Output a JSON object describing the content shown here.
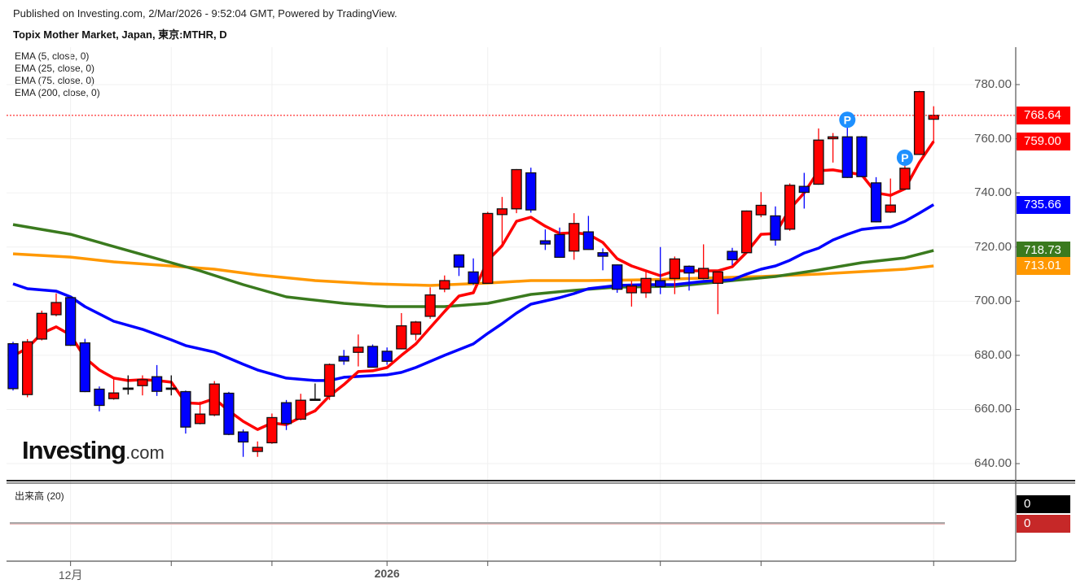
{
  "header": {
    "published": "Published on Investing.com, 2/Mar/2026 - 9:52:04 GMT, Powered by TradingView.",
    "title": "Topix Mother Market, Japan, 東京:MTHR, D"
  },
  "legend": [
    "EMA (5, close, 0)",
    "EMA (25, close, 0)",
    "EMA (75, close, 0)",
    "EMA (200, close, 0)"
  ],
  "logo": {
    "main": "Investing",
    "suffix": ".com"
  },
  "volume": {
    "label": "出来高 (20)",
    "badges": [
      "0",
      "0"
    ]
  },
  "colors": {
    "up": "#ff0000",
    "down": "#0000ff",
    "doji": "#000000",
    "ema5": "#ff0000",
    "ema25": "#0000ff",
    "ema75": "#3a7a1e",
    "ema200": "#ff9800",
    "marker": "#1e90ff"
  },
  "chart_data": {
    "type": "candlestick",
    "title": "Topix Mother Market, Japan, 東京:MTHR, D",
    "ylim": [
      632,
      794
    ],
    "yticks": [
      "780.00",
      "760.00",
      "740.00",
      "720.00",
      "700.00",
      "680.00",
      "660.00",
      "640.00"
    ],
    "ytick_values": [
      780,
      760,
      740,
      720,
      700,
      680,
      660,
      640
    ],
    "xticks": [
      {
        "label": "12月",
        "index": 4,
        "bold": false
      },
      {
        "label": "2026",
        "index": 26,
        "bold": true
      }
    ],
    "unlabeled_tick_indices": [
      11,
      18,
      33,
      45,
      52,
      64
    ],
    "ohlc": [
      [
        684.3,
        685,
        667,
        667.7
      ],
      [
        665.5,
        686,
        664.5,
        685.0
      ],
      [
        686.0,
        696.5,
        685.5,
        695.5
      ],
      [
        695.0,
        702.9,
        694.4,
        699.5
      ],
      [
        701.3,
        701.8,
        683.5,
        683.7
      ],
      [
        684.6,
        686.1,
        666.4,
        666.6
      ],
      [
        667.5,
        668.5,
        659.3,
        661.5
      ],
      [
        664.0,
        672.1,
        663.6,
        666.1
      ],
      [
        667.9,
        672.6,
        665.5,
        667.9
      ],
      [
        668.8,
        672.6,
        665.2,
        671.0
      ],
      [
        672.1,
        676.4,
        665.0,
        666.7
      ],
      [
        667.9,
        672.6,
        665.2,
        667.9
      ],
      [
        666.6,
        667,
        651.1,
        653.5
      ],
      [
        654.8,
        662.9,
        654.5,
        658.3
      ],
      [
        658.0,
        670.5,
        657.5,
        669.4
      ],
      [
        666.0,
        666.5,
        650.5,
        650.8
      ],
      [
        651.7,
        652.6,
        642.5,
        648.0
      ],
      [
        644.5,
        648.2,
        642.5,
        646.0
      ],
      [
        647.7,
        658.5,
        647.3,
        657.0
      ],
      [
        662.5,
        663.5,
        652.4,
        654.8
      ],
      [
        656.4,
        665.8,
        656.0,
        663.4
      ],
      [
        663.8,
        669.6,
        663.8,
        663.8
      ],
      [
        664.9,
        677.0,
        663.5,
        676.6
      ],
      [
        679.6,
        682.0,
        676.5,
        677.9
      ],
      [
        681.1,
        687.7,
        675.9,
        683.0
      ],
      [
        683.3,
        684.0,
        675.6,
        675.6
      ],
      [
        681.5,
        682.9,
        676.5,
        677.8
      ],
      [
        682.4,
        695.6,
        682.2,
        690.9
      ],
      [
        687.8,
        692.7,
        685.5,
        692.3
      ],
      [
        694.4,
        705.1,
        693.5,
        702.3
      ],
      [
        704.5,
        709.5,
        703.3,
        707.6
      ],
      [
        717.1,
        717.3,
        709.3,
        712.6
      ],
      [
        710.8,
        715.8,
        706.0,
        706.6
      ],
      [
        706.6,
        733.0,
        706.6,
        732.4
      ],
      [
        732.0,
        738.5,
        720.7,
        734.1
      ],
      [
        734.1,
        748.8,
        732.5,
        748.6
      ],
      [
        747.4,
        749.3,
        732.7,
        733.7
      ],
      [
        722.3,
        726.5,
        718.9,
        721.1
      ],
      [
        724.6,
        727.2,
        716.0,
        716.2
      ],
      [
        718.5,
        732.5,
        715.3,
        728.7
      ],
      [
        725.6,
        731.5,
        719.0,
        719.1
      ],
      [
        717.9,
        719.5,
        711.4,
        716.6
      ],
      [
        713.4,
        713.6,
        703.1,
        704.4
      ],
      [
        703.1,
        707.5,
        698.0,
        705.6
      ],
      [
        703.1,
        710.8,
        701.2,
        708.4
      ],
      [
        707.6,
        720.0,
        702.6,
        705.4
      ],
      [
        708.4,
        716.5,
        702.6,
        715.6
      ],
      [
        712.9,
        713.2,
        703.9,
        710.4
      ],
      [
        708.4,
        721.0,
        708.0,
        712.1
      ],
      [
        706.6,
        711.0,
        695.2,
        710.8
      ],
      [
        718.4,
        719.7,
        713.3,
        715.3
      ],
      [
        717.9,
        733.5,
        717.7,
        733.3
      ],
      [
        731.9,
        740.3,
        731.0,
        735.4
      ],
      [
        731.5,
        735.0,
        720.5,
        722.6
      ],
      [
        726.6,
        743.5,
        726.0,
        742.8
      ],
      [
        742.4,
        747.4,
        734.2,
        740.2
      ],
      [
        743.2,
        763.8,
        743.0,
        759.5
      ],
      [
        760.0,
        762.1,
        751.2,
        760.7
      ],
      [
        760.7,
        765.2,
        745.5,
        745.7
      ],
      [
        760.7,
        761.0,
        745.8,
        746.0
      ],
      [
        743.7,
        745.8,
        729.1,
        729.3
      ],
      [
        732.9,
        745.3,
        732.6,
        735.5
      ],
      [
        741.4,
        751.5,
        741.0,
        749.1
      ],
      [
        754.2,
        777.7,
        754.0,
        777.4
      ],
      [
        767.2,
        772.0,
        758.6,
        768.64
      ]
    ],
    "series": [
      {
        "name": "EMA (5, close, 0)",
        "color_key": "ema5",
        "points": [
          [
            0,
            679.7
          ],
          [
            1,
            682.7
          ],
          [
            2,
            688.1
          ],
          [
            3,
            690.5
          ],
          [
            4,
            687.5
          ],
          [
            5,
            679.1
          ],
          [
            6,
            674.6
          ],
          [
            7,
            671.6
          ],
          [
            8,
            670.7
          ],
          [
            9,
            671.0
          ],
          [
            10,
            670.7
          ],
          [
            11,
            670.1
          ],
          [
            12,
            662.5
          ],
          [
            13,
            662.2
          ],
          [
            14,
            664.0
          ],
          [
            15,
            659.5
          ],
          [
            16,
            655.6
          ],
          [
            17,
            652.6
          ],
          [
            18,
            655.0
          ],
          [
            19,
            654.4
          ],
          [
            20,
            657.1
          ],
          [
            21,
            659.5
          ],
          [
            22,
            665.0
          ],
          [
            23,
            669.2
          ],
          [
            24,
            674.0
          ],
          [
            25,
            674.3
          ],
          [
            26,
            675.5
          ],
          [
            27,
            680.0
          ],
          [
            28,
            684.2
          ],
          [
            29,
            690.2
          ],
          [
            30,
            696.2
          ],
          [
            31,
            701.9
          ],
          [
            32,
            703.1
          ],
          [
            33,
            715.1
          ],
          [
            34,
            720.5
          ],
          [
            35,
            729.5
          ],
          [
            36,
            731.0
          ],
          [
            37,
            727.7
          ],
          [
            38,
            725.0
          ],
          [
            39,
            725.3
          ],
          [
            40,
            724.7
          ],
          [
            41,
            721.7
          ],
          [
            42,
            715.7
          ],
          [
            43,
            713.0
          ],
          [
            44,
            711.2
          ],
          [
            45,
            709.4
          ],
          [
            46,
            711.2
          ],
          [
            47,
            711.2
          ],
          [
            48,
            711.2
          ],
          [
            49,
            711.2
          ],
          [
            50,
            712.7
          ],
          [
            51,
            718.1
          ],
          [
            52,
            724.7
          ],
          [
            53,
            725.0
          ],
          [
            54,
            734.0
          ],
          [
            55,
            740.0
          ],
          [
            56,
            748.2
          ],
          [
            57,
            748.5
          ],
          [
            58,
            747.6
          ],
          [
            59,
            746.7
          ],
          [
            60,
            740.0
          ],
          [
            61,
            739.1
          ],
          [
            62,
            741.5
          ],
          [
            63,
            751.2
          ],
          [
            64,
            759.0
          ]
        ],
        "last_label": "759.00"
      },
      {
        "name": "EMA (25, close, 0)",
        "color_key": "ema25",
        "points": [
          [
            0,
            706.4
          ],
          [
            1,
            704.6
          ],
          [
            3,
            703.7
          ],
          [
            4,
            701.6
          ],
          [
            5,
            698.0
          ],
          [
            7,
            692.6
          ],
          [
            9,
            689.6
          ],
          [
            11,
            685.7
          ],
          [
            12,
            683.6
          ],
          [
            14,
            681.2
          ],
          [
            16,
            676.7
          ],
          [
            17,
            674.6
          ],
          [
            19,
            671.6
          ],
          [
            21,
            670.7
          ],
          [
            22,
            670.7
          ],
          [
            23,
            671.9
          ],
          [
            25,
            672.5
          ],
          [
            26,
            672.8
          ],
          [
            27,
            673.7
          ],
          [
            28,
            675.5
          ],
          [
            30,
            680.0
          ],
          [
            31,
            682.1
          ],
          [
            32,
            684.2
          ],
          [
            33,
            688.1
          ],
          [
            34,
            691.7
          ],
          [
            35,
            695.6
          ],
          [
            36,
            698.9
          ],
          [
            37,
            700.1
          ],
          [
            38,
            701.3
          ],
          [
            39,
            702.8
          ],
          [
            40,
            704.6
          ],
          [
            42,
            705.8
          ],
          [
            44,
            706.1
          ],
          [
            46,
            706.1
          ],
          [
            48,
            707.3
          ],
          [
            50,
            707.9
          ],
          [
            51,
            710.0
          ],
          [
            52,
            711.8
          ],
          [
            53,
            713.0
          ],
          [
            54,
            715.1
          ],
          [
            55,
            717.8
          ],
          [
            56,
            719.6
          ],
          [
            57,
            722.6
          ],
          [
            58,
            724.7
          ],
          [
            59,
            726.5
          ],
          [
            60,
            727.1
          ],
          [
            61,
            727.4
          ],
          [
            62,
            729.5
          ],
          [
            63,
            732.5
          ],
          [
            64,
            735.66
          ]
        ],
        "last_label": "735.66"
      },
      {
        "name": "EMA (75, close, 0)",
        "color_key": "ema75",
        "points": [
          [
            0,
            728.3
          ],
          [
            4,
            724.7
          ],
          [
            6,
            721.7
          ],
          [
            9,
            717.2
          ],
          [
            13,
            711.2
          ],
          [
            16,
            706.1
          ],
          [
            19,
            701.6
          ],
          [
            23,
            699.2
          ],
          [
            26,
            698.0
          ],
          [
            30,
            698.0
          ],
          [
            33,
            699.2
          ],
          [
            36,
            702.5
          ],
          [
            39,
            704.0
          ],
          [
            42,
            705.2
          ],
          [
            46,
            705.5
          ],
          [
            50,
            707.6
          ],
          [
            53,
            709.1
          ],
          [
            56,
            711.5
          ],
          [
            59,
            714.2
          ],
          [
            62,
            716.0
          ],
          [
            64,
            718.73
          ]
        ],
        "last_label": "718.73"
      },
      {
        "name": "EMA (200, close, 0)",
        "color_key": "ema200",
        "points": [
          [
            0,
            717.5
          ],
          [
            4,
            716.3
          ],
          [
            7,
            714.5
          ],
          [
            11,
            713.0
          ],
          [
            14,
            711.8
          ],
          [
            17,
            709.7
          ],
          [
            21,
            707.6
          ],
          [
            25,
            706.4
          ],
          [
            29,
            705.8
          ],
          [
            33,
            706.7
          ],
          [
            36,
            707.6
          ],
          [
            40,
            707.6
          ],
          [
            44,
            707.9
          ],
          [
            48,
            708.5
          ],
          [
            52,
            709.1
          ],
          [
            56,
            710.0
          ],
          [
            59,
            710.9
          ],
          [
            62,
            711.8
          ],
          [
            64,
            713.01
          ]
        ],
        "last_label": "713.01"
      }
    ],
    "last_price": {
      "value": 768.64,
      "label": "768.64"
    },
    "markers": [
      {
        "index": 58,
        "value": 767,
        "label": "P"
      },
      {
        "index": 62,
        "value": 753,
        "label": "P"
      }
    ]
  }
}
